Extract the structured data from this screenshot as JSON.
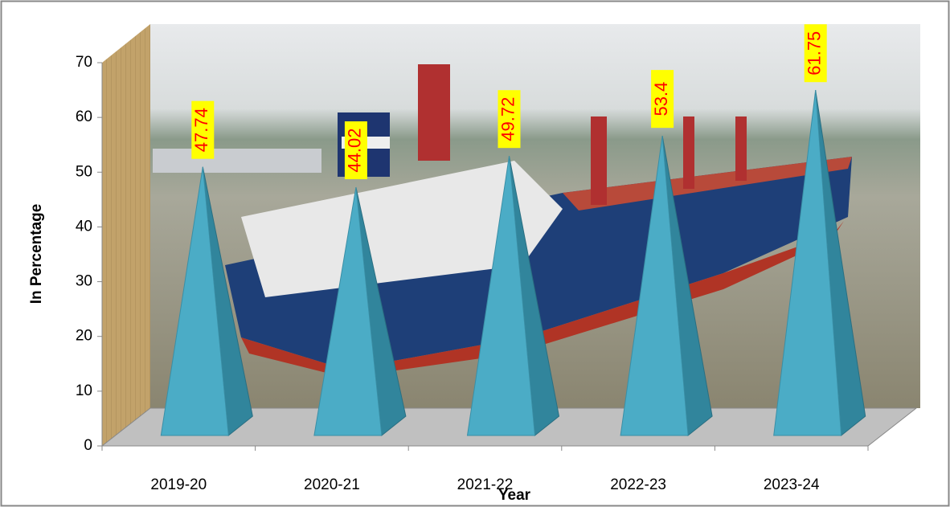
{
  "chart_data": {
    "type": "pyramid3d",
    "categories": [
      "2019-20",
      "2020-21",
      "2021-22",
      "2022-23",
      "2023-24"
    ],
    "values": [
      47.74,
      44.02,
      49.72,
      53.4,
      61.75
    ],
    "color": "#4bacc6",
    "label_color": "#ff0000",
    "label_background": "#ffff00",
    "ylim": [
      0,
      70
    ],
    "yticks": [
      0,
      10,
      20,
      30,
      40,
      50,
      60,
      70
    ],
    "y_label": "In Percentage",
    "x_label": "Year"
  }
}
